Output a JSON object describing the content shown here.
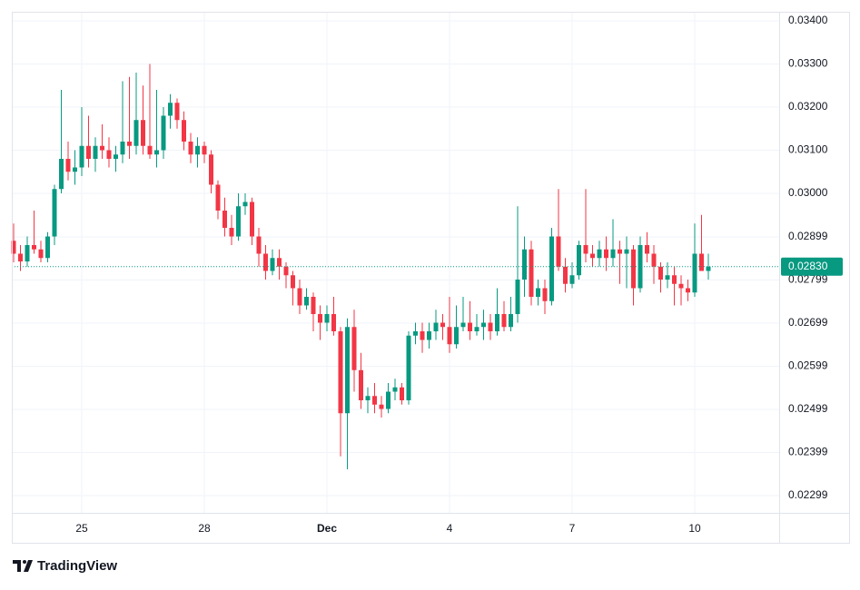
{
  "chart_data": {
    "type": "candlestick",
    "branding": "TradingView",
    "up_color": "#089981",
    "down_color": "#f23645",
    "grid": true,
    "ylim": [
      0.02259,
      0.03421
    ],
    "yticks": [
      {
        "value": 0.034,
        "label": "0.03400"
      },
      {
        "value": 0.033,
        "label": "0.03300"
      },
      {
        "value": 0.032,
        "label": "0.03200"
      },
      {
        "value": 0.031,
        "label": "0.03100"
      },
      {
        "value": 0.03,
        "label": "0.03000"
      },
      {
        "value": 0.02899,
        "label": "0.02899"
      },
      {
        "value": 0.02799,
        "label": "0.02799"
      },
      {
        "value": 0.02699,
        "label": "0.02699"
      },
      {
        "value": 0.02599,
        "label": "0.02599"
      },
      {
        "value": 0.02499,
        "label": "0.02499"
      },
      {
        "value": 0.02399,
        "label": "0.02399"
      },
      {
        "value": 0.02299,
        "label": "0.02299"
      }
    ],
    "last_price": {
      "value": 0.0283,
      "label": "0.02830"
    },
    "categories": [
      null,
      null,
      null,
      null,
      null,
      null,
      null,
      null,
      null,
      null,
      "25",
      null,
      null,
      null,
      null,
      null,
      null,
      null,
      null,
      null,
      null,
      null,
      null,
      null,
      null,
      null,
      null,
      null,
      "28",
      null,
      null,
      null,
      null,
      null,
      null,
      null,
      null,
      null,
      null,
      null,
      null,
      null,
      null,
      null,
      null,
      null,
      "Dec",
      null,
      null,
      null,
      null,
      null,
      null,
      null,
      null,
      null,
      null,
      null,
      null,
      null,
      null,
      null,
      null,
      null,
      "4",
      null,
      null,
      null,
      null,
      null,
      null,
      null,
      null,
      null,
      null,
      null,
      null,
      null,
      null,
      null,
      null,
      null,
      "7",
      null,
      null,
      null,
      null,
      null,
      null,
      null,
      null,
      null,
      null,
      null,
      null,
      null,
      null,
      null,
      null,
      null,
      "10",
      null,
      null
    ],
    "open": [
      0.0289,
      0.0286,
      0.02842,
      0.0288,
      0.0287,
      0.0285,
      0.029,
      0.0301,
      0.0308,
      0.0305,
      0.0306,
      0.0311,
      0.0308,
      0.0311,
      0.031,
      0.0308,
      0.0309,
      0.0312,
      0.0311,
      0.0317,
      0.0311,
      0.0309,
      0.031,
      0.0318,
      0.0321,
      0.0317,
      0.0312,
      0.0309,
      0.0311,
      0.0309,
      0.0302,
      0.0296,
      0.0292,
      0.029,
      0.0297,
      0.0298,
      0.029,
      0.0286,
      0.0282,
      0.0285,
      0.0283,
      0.0281,
      0.0278,
      0.0274,
      0.0276,
      0.0272,
      0.027,
      0.0272,
      0.0268,
      0.0249,
      0.0269,
      0.0259,
      0.0252,
      0.0253,
      0.0251,
      0.025,
      0.0254,
      0.0255,
      0.0252,
      0.0267,
      0.0268,
      0.0266,
      0.0268,
      0.027,
      0.0269,
      0.0265,
      0.0269,
      0.027,
      0.0268,
      0.0269,
      0.027,
      0.0268,
      0.0272,
      0.0269,
      0.0272,
      0.028,
      0.0287,
      0.0276,
      0.0278,
      0.0275,
      0.029,
      0.0283,
      0.0279,
      0.0281,
      0.0288,
      0.0286,
      0.0285,
      0.0287,
      0.0285,
      0.0287,
      0.0286,
      0.0287,
      0.0278,
      0.0288,
      0.0286,
      0.0283,
      0.028,
      0.0281,
      0.0279,
      0.0278,
      0.0277,
      0.0286,
      0.0282
    ],
    "high": [
      0.0293,
      0.0288,
      0.029,
      0.0296,
      0.0289,
      0.0291,
      0.0302,
      0.0324,
      0.0312,
      0.031,
      0.032,
      0.0318,
      0.0313,
      0.0316,
      0.0313,
      0.0311,
      0.0326,
      0.0327,
      0.0328,
      0.0325,
      0.033,
      0.0324,
      0.032,
      0.0323,
      0.0322,
      0.0319,
      0.0314,
      0.0313,
      0.0312,
      0.031,
      0.0303,
      0.0299,
      0.0295,
      0.03,
      0.03,
      0.0299,
      0.0292,
      0.0288,
      0.0287,
      0.0287,
      0.0284,
      0.0282,
      0.028,
      0.0278,
      0.0277,
      0.0274,
      0.0274,
      0.0276,
      0.0269,
      0.0271,
      0.0273,
      0.0263,
      0.0255,
      0.0256,
      0.0253,
      0.0256,
      0.0257,
      0.0256,
      0.0268,
      0.027,
      0.027,
      0.027,
      0.0273,
      0.0272,
      0.0276,
      0.0274,
      0.0276,
      0.0275,
      0.0272,
      0.0273,
      0.0272,
      0.0278,
      0.0275,
      0.0276,
      0.0297,
      0.029,
      0.0289,
      0.028,
      0.028,
      0.0292,
      0.0301,
      0.0285,
      0.0284,
      0.0289,
      0.0301,
      0.0288,
      0.0289,
      0.029,
      0.0294,
      0.0289,
      0.029,
      0.0288,
      0.029,
      0.0291,
      0.0288,
      0.0284,
      0.0284,
      0.0283,
      0.0281,
      0.028,
      0.0293,
      0.0295,
      0.0286
    ],
    "low": [
      0.0284,
      0.0282,
      0.0283,
      0.0286,
      0.0284,
      0.0284,
      0.0288,
      0.03,
      0.0303,
      0.0302,
      0.0304,
      0.0306,
      0.0305,
      0.0308,
      0.0306,
      0.0305,
      0.0307,
      0.0308,
      0.0309,
      0.0309,
      0.0308,
      0.0306,
      0.0308,
      0.0315,
      0.0315,
      0.031,
      0.0307,
      0.0306,
      0.0307,
      0.03,
      0.0294,
      0.029,
      0.0288,
      0.0289,
      0.0295,
      0.0288,
      0.0283,
      0.028,
      0.0281,
      0.028,
      0.0278,
      0.0274,
      0.0272,
      0.0273,
      0.0268,
      0.0266,
      0.0268,
      0.0267,
      0.0239,
      0.0236,
      0.0254,
      0.025,
      0.0249,
      0.0249,
      0.0248,
      0.0249,
      0.0252,
      0.0251,
      0.0251,
      0.0265,
      0.0263,
      0.0264,
      0.0266,
      0.0266,
      0.0263,
      0.0264,
      0.0268,
      0.0266,
      0.0267,
      0.0266,
      0.0266,
      0.0267,
      0.0268,
      0.0268,
      0.027,
      0.0276,
      0.0274,
      0.0274,
      0.0272,
      0.0274,
      0.0282,
      0.0277,
      0.0278,
      0.028,
      0.0284,
      0.0283,
      0.0283,
      0.0282,
      0.0283,
      0.0279,
      0.0278,
      0.0274,
      0.0277,
      0.0284,
      0.0279,
      0.0277,
      0.0278,
      0.0274,
      0.0274,
      0.0275,
      0.0276,
      0.0282,
      0.028
    ],
    "close": [
      0.0286,
      0.02842,
      0.0288,
      0.0287,
      0.0285,
      0.029,
      0.0301,
      0.0308,
      0.0305,
      0.0306,
      0.0311,
      0.0308,
      0.0311,
      0.031,
      0.0308,
      0.0309,
      0.0312,
      0.0311,
      0.0317,
      0.0311,
      0.0309,
      0.031,
      0.0318,
      0.0321,
      0.0317,
      0.0312,
      0.0309,
      0.0311,
      0.0309,
      0.0302,
      0.0296,
      0.0292,
      0.029,
      0.0297,
      0.0298,
      0.029,
      0.0286,
      0.0282,
      0.0285,
      0.0283,
      0.0281,
      0.0278,
      0.0274,
      0.0276,
      0.0272,
      0.027,
      0.0272,
      0.0268,
      0.0249,
      0.0269,
      0.0259,
      0.0252,
      0.0253,
      0.0251,
      0.025,
      0.0254,
      0.0255,
      0.0252,
      0.0267,
      0.0268,
      0.0266,
      0.0268,
      0.027,
      0.0269,
      0.0265,
      0.0269,
      0.027,
      0.0268,
      0.0269,
      0.027,
      0.0268,
      0.0272,
      0.0269,
      0.0272,
      0.028,
      0.0287,
      0.0276,
      0.0278,
      0.0275,
      0.029,
      0.0283,
      0.0279,
      0.0281,
      0.0288,
      0.0286,
      0.0285,
      0.0287,
      0.0285,
      0.0287,
      0.0286,
      0.0287,
      0.0278,
      0.0288,
      0.0286,
      0.0283,
      0.028,
      0.0281,
      0.0279,
      0.0278,
      0.0277,
      0.0286,
      0.0282,
      0.0283
    ]
  }
}
